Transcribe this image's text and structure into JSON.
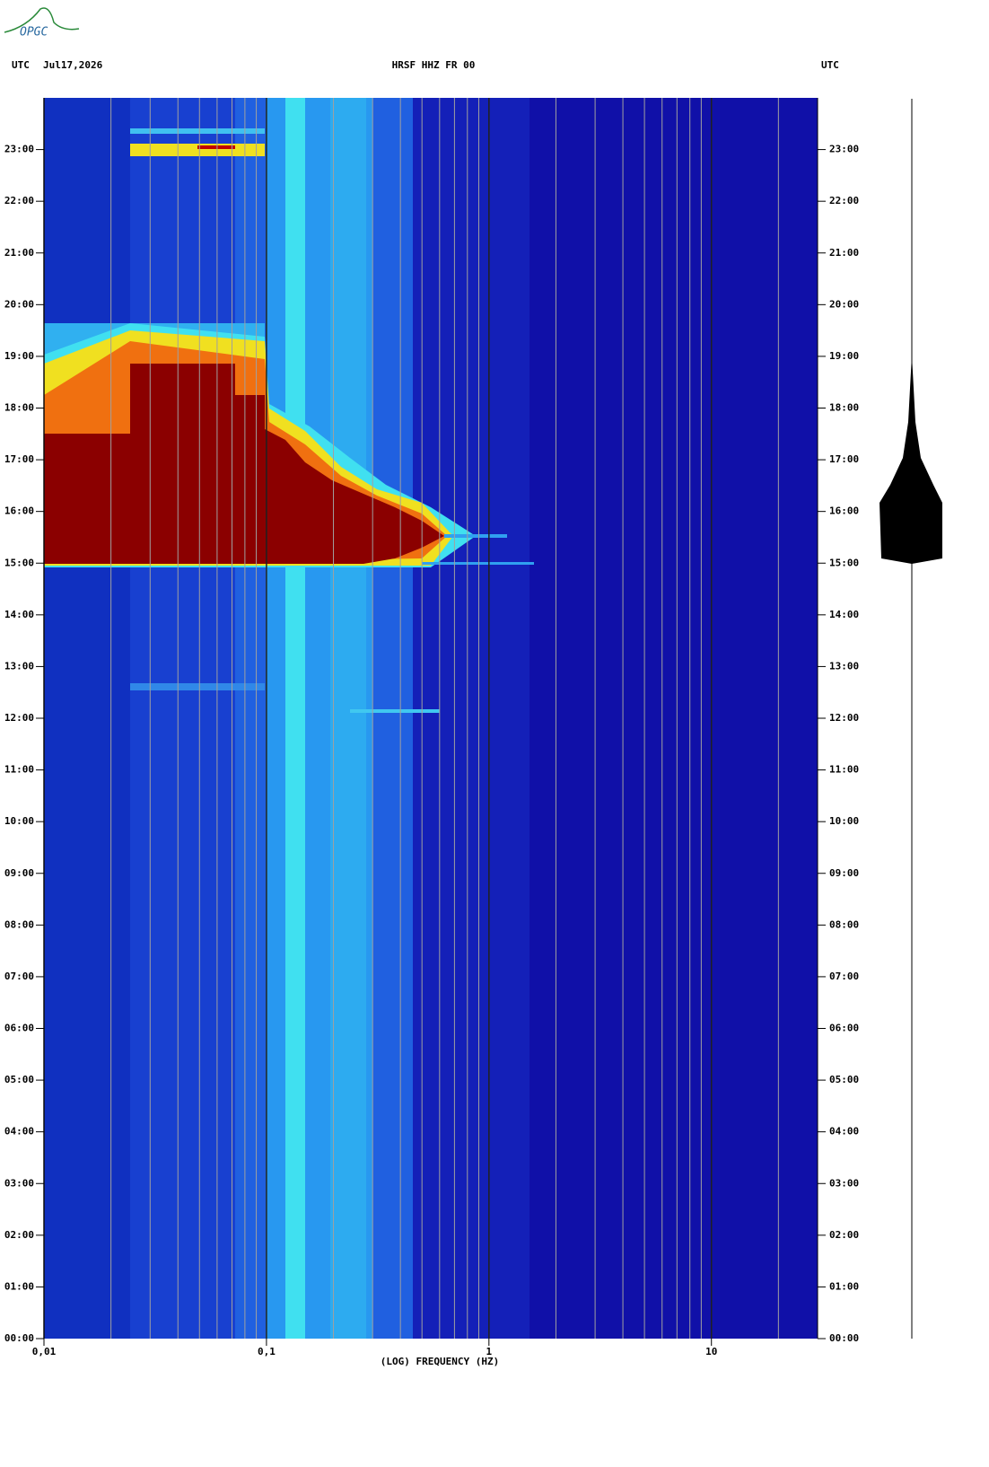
{
  "logo": "OPGC",
  "chart_data": {
    "type": "spectrogram",
    "header_left": "UTC",
    "date": "Jul17,2026",
    "title": "HRSF HHZ FR 00",
    "header_right": "UTC",
    "xlabel": "(LOG) FREQUENCY (HZ)",
    "xscale": "log",
    "xlim": [
      0.01,
      30
    ],
    "xticks": [
      {
        "value": 0.01,
        "label": "0,01"
      },
      {
        "value": 0.1,
        "label": "0,1"
      },
      1,
      10
    ],
    "xminor": [
      0.02,
      0.03,
      0.04,
      0.05,
      0.06,
      0.07,
      0.08,
      0.09,
      0.2,
      0.3,
      0.4,
      0.5,
      0.6,
      0.7,
      0.8,
      0.9,
      2,
      3,
      4,
      5,
      6,
      7,
      8,
      9,
      20,
      30
    ],
    "ylim": [
      0,
      24
    ],
    "yticks": [
      {
        "value": 0,
        "label": "00:00"
      },
      {
        "value": 1,
        "label": "01:00"
      },
      {
        "value": 2,
        "label": "02:00"
      },
      {
        "value": 3,
        "label": "03:00"
      },
      {
        "value": 4,
        "label": "04:00"
      },
      {
        "value": 5,
        "label": "05:00"
      },
      {
        "value": 6,
        "label": "06:00"
      },
      {
        "value": 7,
        "label": "07:00"
      },
      {
        "value": 8,
        "label": "08:00"
      },
      {
        "value": 9,
        "label": "09:00"
      },
      {
        "value": 10,
        "label": "10:00"
      },
      {
        "value": 11,
        "label": "11:00"
      },
      {
        "value": 12,
        "label": "12:00"
      },
      {
        "value": 13,
        "label": "13:00"
      },
      {
        "value": 14,
        "label": "14:00"
      },
      {
        "value": 15,
        "label": "15:00"
      },
      {
        "value": 16,
        "label": "16:00"
      },
      {
        "value": 17,
        "label": "17:00"
      },
      {
        "value": 18,
        "label": "18:00"
      },
      {
        "value": 19,
        "label": "19:00"
      },
      {
        "value": 20,
        "label": "20:00"
      },
      {
        "value": 21,
        "label": "21:00"
      },
      {
        "value": 22,
        "label": "22:00"
      },
      {
        "value": 23,
        "label": "23:00"
      }
    ]
  }
}
